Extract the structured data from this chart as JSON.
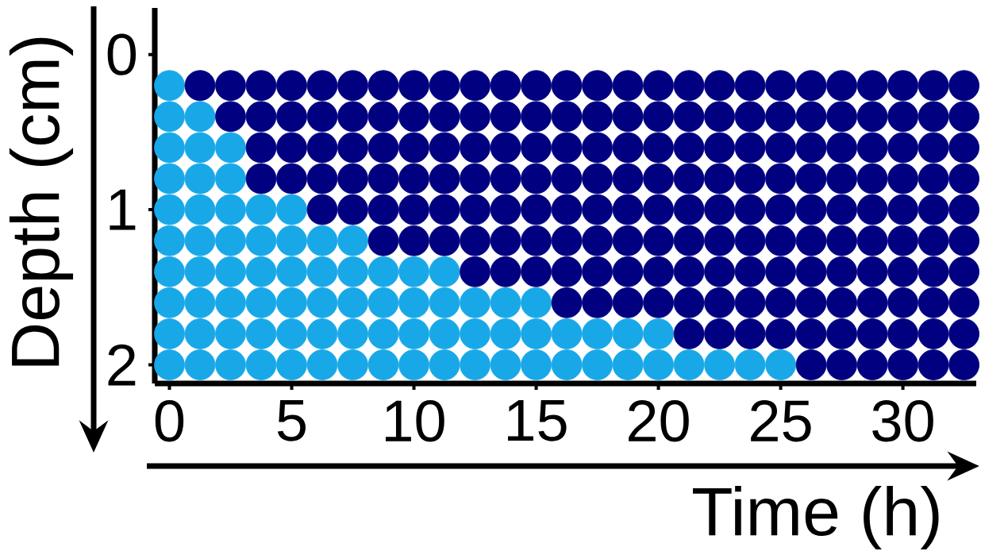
{
  "chart_data": {
    "type": "scatter",
    "xlabel": "Time (h)",
    "ylabel": "Depth (cm)",
    "xlim": [
      -0.6,
      33
    ],
    "ylim": [
      2.12,
      -0.3
    ],
    "xticks": [
      0,
      5,
      10,
      15,
      20,
      25,
      30
    ],
    "yticks": [
      0,
      1,
      2
    ],
    "series": [
      {
        "color": "#18a8e8",
        "x": [
          0,
          0,
          0,
          0,
          0,
          0,
          0,
          0,
          0,
          0,
          1.25,
          1.25,
          1.25,
          1.25,
          1.25,
          1.25,
          1.25,
          1.25,
          1.25,
          2.5,
          2.5,
          2.5,
          2.5,
          2.5,
          2.5,
          2.5,
          2.5,
          3.75,
          3.75,
          3.75,
          3.75,
          3.75,
          3.75,
          5,
          5,
          5,
          5,
          5,
          5,
          6.25,
          6.25,
          6.25,
          6.25,
          6.25,
          7.5,
          7.5,
          7.5,
          7.5,
          7.5,
          8.75,
          8.75,
          8.75,
          8.75,
          10,
          10,
          10,
          10,
          11.25,
          11.25,
          11.25,
          11.25,
          12.5,
          12.5,
          12.5,
          13.75,
          13.75,
          13.75,
          15,
          15,
          15,
          16.25,
          16.25,
          17.5,
          17.5,
          18.75,
          18.75,
          20,
          20,
          21.25,
          22.5,
          23.75,
          25
        ],
        "values": [
          0.2,
          0.4,
          0.6,
          0.8,
          1.0,
          1.2,
          1.4,
          1.6,
          1.8,
          2.0,
          0.4,
          0.6,
          0.8,
          1.0,
          1.2,
          1.4,
          1.6,
          1.8,
          2.0,
          0.6,
          0.8,
          1.0,
          1.2,
          1.4,
          1.6,
          1.8,
          2.0,
          1.0,
          1.2,
          1.4,
          1.6,
          1.8,
          2.0,
          1.0,
          1.2,
          1.4,
          1.6,
          1.8,
          2.0,
          1.2,
          1.4,
          1.6,
          1.8,
          2.0,
          1.2,
          1.4,
          1.6,
          1.8,
          2.0,
          1.4,
          1.6,
          1.8,
          2.0,
          1.4,
          1.6,
          1.8,
          2.0,
          1.4,
          1.6,
          1.8,
          2.0,
          1.6,
          1.8,
          2.0,
          1.6,
          1.8,
          2.0,
          1.6,
          1.8,
          2.0,
          1.8,
          2.0,
          1.8,
          2.0,
          1.8,
          2.0,
          1.8,
          2.0,
          2.0,
          2.0,
          2.0,
          2.0
        ]
      },
      {
        "color": "#000080",
        "x": [
          1.25,
          2.5,
          2.5,
          3.75,
          3.75,
          3.75,
          3.75,
          5,
          5,
          5,
          5,
          6.25,
          6.25,
          6.25,
          6.25,
          6.25,
          7.5,
          7.5,
          7.5,
          7.5,
          7.5,
          8.75,
          8.75,
          8.75,
          8.75,
          8.75,
          8.75,
          10,
          10,
          10,
          10,
          10,
          10,
          11.25,
          11.25,
          11.25,
          11.25,
          11.25,
          11.25,
          12.5,
          12.5,
          12.5,
          12.5,
          12.5,
          12.5,
          12.5,
          13.75,
          13.75,
          13.75,
          13.75,
          13.75,
          13.75,
          13.75,
          15,
          15,
          15,
          15,
          15,
          15,
          15,
          16.25,
          16.25,
          16.25,
          16.25,
          16.25,
          16.25,
          16.25,
          16.25,
          17.5,
          17.5,
          17.5,
          17.5,
          17.5,
          17.5,
          17.5,
          17.5,
          18.75,
          18.75,
          18.75,
          18.75,
          18.75,
          18.75,
          18.75,
          18.75,
          20,
          20,
          20,
          20,
          20,
          20,
          20,
          20,
          21.25,
          21.25,
          21.25,
          21.25,
          21.25,
          21.25,
          21.25,
          21.25,
          21.25,
          22.5,
          22.5,
          22.5,
          22.5,
          22.5,
          22.5,
          22.5,
          22.5,
          22.5,
          23.75,
          23.75,
          23.75,
          23.75,
          23.75,
          23.75,
          23.75,
          23.75,
          23.75,
          25,
          25,
          25,
          25,
          25,
          25,
          25,
          25,
          25,
          26.25,
          26.25,
          26.25,
          26.25,
          26.25,
          26.25,
          26.25,
          26.25,
          26.25,
          26.25,
          27.5,
          27.5,
          27.5,
          27.5,
          27.5,
          27.5,
          27.5,
          27.5,
          27.5,
          27.5,
          28.75,
          28.75,
          28.75,
          28.75,
          28.75,
          28.75,
          28.75,
          28.75,
          28.75,
          28.75,
          30,
          30,
          30,
          30,
          30,
          30,
          30,
          30,
          30,
          30,
          31.25,
          31.25,
          31.25,
          31.25,
          31.25,
          31.25,
          31.25,
          31.25,
          31.25,
          31.25,
          32.5,
          32.5,
          32.5,
          32.5,
          32.5,
          32.5,
          32.5,
          32.5,
          32.5,
          32.5
        ],
        "values": [
          0.2,
          0.2,
          0.4,
          0.2,
          0.4,
          0.6,
          0.8,
          0.2,
          0.4,
          0.6,
          0.8,
          0.2,
          0.4,
          0.6,
          0.8,
          1.0,
          0.2,
          0.4,
          0.6,
          0.8,
          1.0,
          0.2,
          0.4,
          0.6,
          0.8,
          1.0,
          1.2,
          0.2,
          0.4,
          0.6,
          0.8,
          1.0,
          1.2,
          0.2,
          0.4,
          0.6,
          0.8,
          1.0,
          1.2,
          0.2,
          0.4,
          0.6,
          0.8,
          1.0,
          1.2,
          1.4,
          0.2,
          0.4,
          0.6,
          0.8,
          1.0,
          1.2,
          1.4,
          0.2,
          0.4,
          0.6,
          0.8,
          1.0,
          1.2,
          1.4,
          0.2,
          0.4,
          0.6,
          0.8,
          1.0,
          1.2,
          1.4,
          1.6,
          0.2,
          0.4,
          0.6,
          0.8,
          1.0,
          1.2,
          1.4,
          1.6,
          0.2,
          0.4,
          0.6,
          0.8,
          1.0,
          1.2,
          1.4,
          1.6,
          0.2,
          0.4,
          0.6,
          0.8,
          1.0,
          1.2,
          1.4,
          1.6,
          0.2,
          0.4,
          0.6,
          0.8,
          1.0,
          1.2,
          1.4,
          1.6,
          1.8,
          0.2,
          0.4,
          0.6,
          0.8,
          1.0,
          1.2,
          1.4,
          1.6,
          1.8,
          0.2,
          0.4,
          0.6,
          0.8,
          1.0,
          1.2,
          1.4,
          1.6,
          1.8,
          0.2,
          0.4,
          0.6,
          0.8,
          1.0,
          1.2,
          1.4,
          1.6,
          1.8,
          0.2,
          0.4,
          0.6,
          0.8,
          1.0,
          1.2,
          1.4,
          1.6,
          1.8,
          2.0,
          0.2,
          0.4,
          0.6,
          0.8,
          1.0,
          1.2,
          1.4,
          1.6,
          1.8,
          2.0,
          0.2,
          0.4,
          0.6,
          0.8,
          1.0,
          1.2,
          1.4,
          1.6,
          1.8,
          2.0,
          0.2,
          0.4,
          0.6,
          0.8,
          1.0,
          1.2,
          1.4,
          1.6,
          1.8,
          2.0,
          0.2,
          0.4,
          0.6,
          0.8,
          1.0,
          1.2,
          1.4,
          1.6,
          1.8,
          2.0,
          0.2,
          0.4,
          0.6,
          0.8,
          1.0,
          1.2,
          1.4,
          1.6,
          1.8,
          2.0
        ]
      }
    ]
  }
}
